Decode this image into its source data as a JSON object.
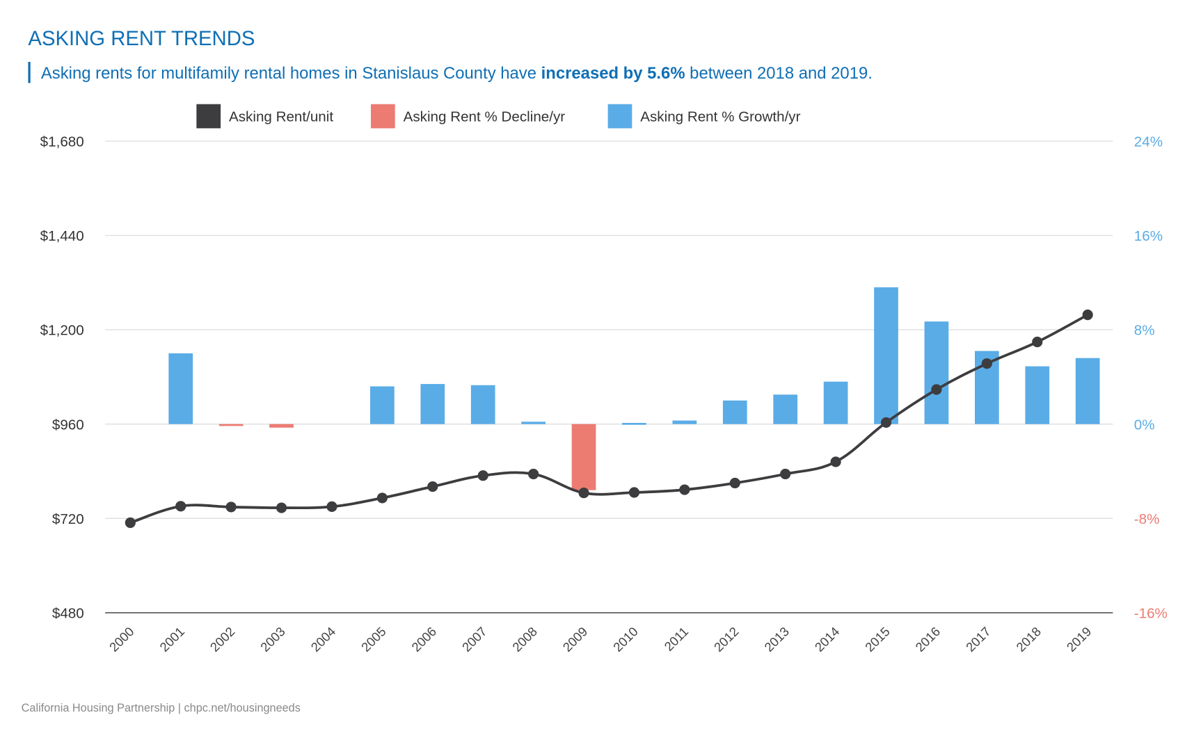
{
  "title": "ASKING RENT TRENDS",
  "subtitle": {
    "before": "Asking rents for multifamily rental homes in Stanislaus County have ",
    "bold": "increased by 5.6%",
    "after": " between 2018 and 2019."
  },
  "footer": "California Housing Partnership | chpc.net/housingneeds",
  "colors": {
    "title": "#0f6fb4",
    "rent_line": "#3d3d40",
    "decline": "#ec7b72",
    "growth": "#5aace6",
    "grid": "#dddddd",
    "axis_text": "#333333"
  },
  "chart_data": {
    "type": "bar+line",
    "legend": [
      {
        "label": "Asking Rent/unit",
        "color": "#3d3d40"
      },
      {
        "label": "Asking Rent % Decline/yr",
        "color": "#ec7b72"
      },
      {
        "label": "Asking Rent % Growth/yr",
        "color": "#5aace6"
      }
    ],
    "legend_position": "top",
    "grid": true,
    "categories": [
      "2000",
      "2001",
      "2002",
      "2003",
      "2004",
      "2005",
      "2006",
      "2007",
      "2008",
      "2009",
      "2010",
      "2011",
      "2012",
      "2013",
      "2014",
      "2015",
      "2016",
      "2017",
      "2018",
      "2019"
    ],
    "left_axis": {
      "ylim": [
        480,
        1680
      ],
      "ticks": [
        "$480",
        "$720",
        "$960",
        "$1,200",
        "$1,440",
        "$1,680"
      ],
      "tick_values": [
        480,
        720,
        960,
        1200,
        1440,
        1680
      ]
    },
    "right_axis": {
      "ylim": [
        -16,
        24
      ],
      "ticks": [
        "-16%",
        "-8%",
        "0%",
        "8%",
        "16%",
        "24%"
      ],
      "tick_values": [
        -16,
        -8,
        0,
        8,
        16,
        24
      ]
    },
    "series": [
      {
        "name": "Asking Rent/unit",
        "type": "line",
        "axis": "left",
        "values": [
          709,
          751,
          749,
          747,
          750,
          772,
          801,
          829,
          833,
          785,
          786,
          793,
          810,
          833,
          864,
          964,
          1048,
          1114,
          1169,
          1238
        ]
      },
      {
        "name": "Asking Rent % Growth/yr",
        "type": "bar",
        "axis": "right",
        "values": [
          null,
          6.0,
          -0.1,
          -0.3,
          0,
          3.2,
          3.4,
          3.3,
          0.2,
          -5.6,
          0.1,
          0.3,
          2.0,
          2.5,
          3.6,
          11.6,
          8.7,
          6.2,
          4.9,
          5.6
        ]
      }
    ]
  }
}
